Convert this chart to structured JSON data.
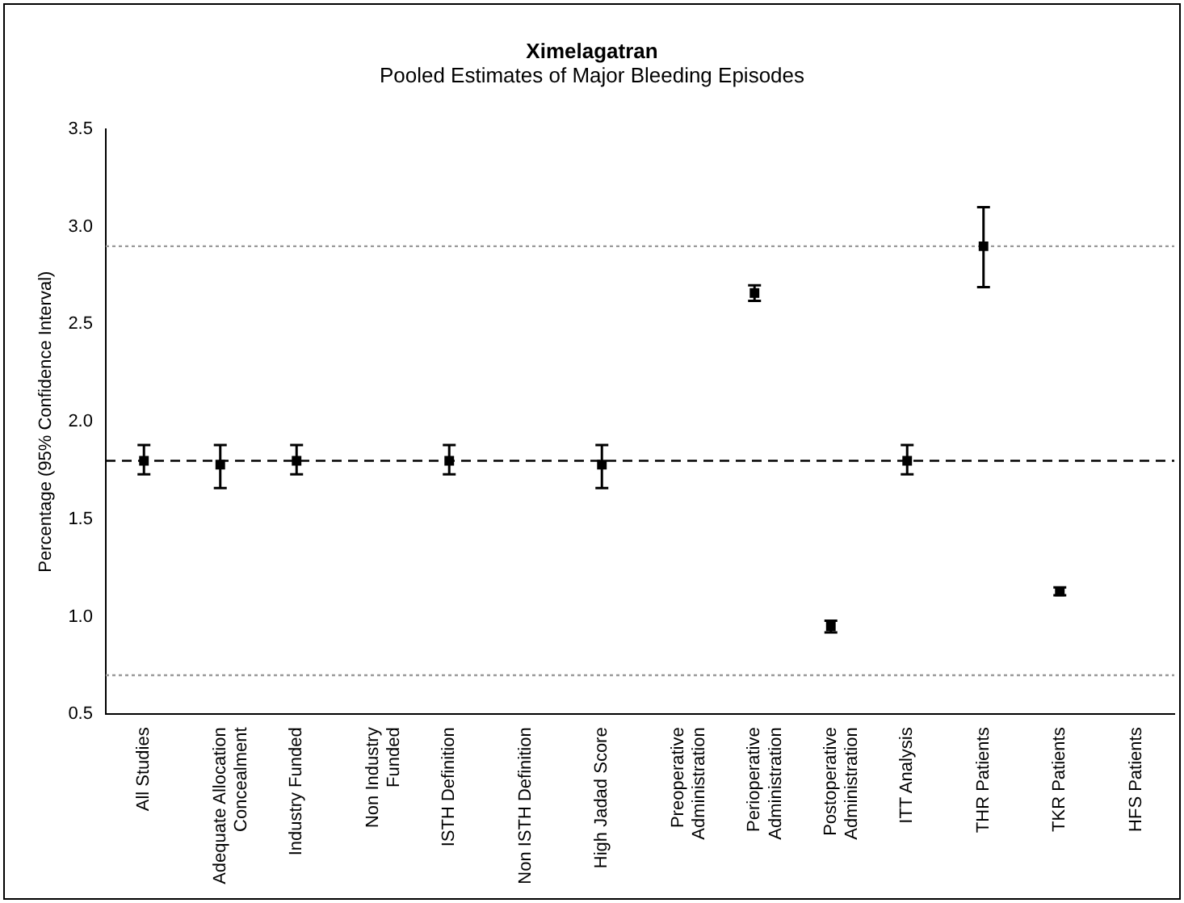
{
  "chart_data": {
    "type": "scatter",
    "title": "Ximelagatran",
    "subtitle": "Pooled Estimates of Major Bleeding Episodes",
    "ylabel": "Percentage (95% Confidence Interval)",
    "categories": [
      "All Studies",
      "Adequate Allocation\nConcealment",
      "Industry Funded",
      "Non Industry\nFunded",
      "ISTH Definition",
      "Non ISTH Definition",
      "High Jadad Score",
      "Preoperative\nAdministration",
      "Perioperative\nAdministration",
      "Postoperative\nAdministration",
      "ITT Analysis",
      "THR Patients",
      "TKR Patients",
      "HFS Patients"
    ],
    "series": [
      {
        "color": "#000000",
        "values": [
          1.8,
          1.78,
          1.8,
          null,
          1.8,
          null,
          1.78,
          null,
          2.66,
          0.95,
          1.8,
          2.9,
          1.13,
          null
        ],
        "errors": [
          [
            1.73,
            1.88
          ],
          [
            1.66,
            1.88
          ],
          [
            1.73,
            1.88
          ],
          null,
          [
            1.73,
            1.88
          ],
          null,
          [
            1.66,
            1.88
          ],
          null,
          [
            2.62,
            2.7
          ],
          [
            0.92,
            0.98
          ],
          [
            1.73,
            1.88
          ],
          [
            2.69,
            3.1
          ],
          [
            1.11,
            1.15
          ],
          null
        ]
      }
    ],
    "ylim": [
      0.5,
      3.5
    ],
    "yticks": [
      {
        "value": 0.5,
        "label": "0.5"
      },
      {
        "value": 1,
        "label": "1.0"
      },
      {
        "value": 1.5,
        "label": "1.5"
      },
      {
        "value": 2,
        "label": "2.0"
      },
      {
        "value": 2.5,
        "label": "2.5"
      },
      {
        "value": 3,
        "label": "3.0"
      },
      {
        "value": 3.5,
        "label": "3.5"
      }
    ],
    "ref_lines": [
      {
        "axis": "y",
        "value": 1.8,
        "color": "#000000",
        "line_style": "dashed"
      },
      {
        "axis": "y",
        "value": 2.9,
        "color": "#999999",
        "line_style": "dotted"
      },
      {
        "axis": "y",
        "value": 0.7,
        "color": "#999999",
        "line_style": "dotted"
      }
    ],
    "grid": false,
    "legend": false,
    "marker": "square"
  }
}
